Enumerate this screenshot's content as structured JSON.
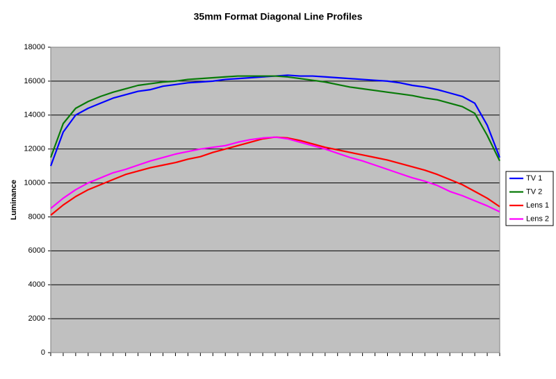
{
  "chart_data": {
    "type": "line",
    "title": "35mm Format Diagonal Line Profiles",
    "ylabel": "Luminance",
    "categories": [
      null,
      null,
      null,
      null,
      null,
      null,
      null,
      null,
      null,
      null,
      null,
      null,
      null,
      null,
      null,
      null,
      null,
      null,
      null,
      null,
      null,
      null,
      null,
      null,
      null,
      null,
      null,
      null,
      null,
      null,
      null,
      null,
      null,
      null,
      null,
      null,
      null
    ],
    "series": [
      {
        "name": "TV 1",
        "color": "#0000ff",
        "values": [
          11000,
          13000,
          14000,
          14400,
          14700,
          15000,
          15200,
          15400,
          15500,
          15700,
          15800,
          15900,
          15950,
          16000,
          16100,
          16150,
          16200,
          16250,
          16300,
          16350,
          16300,
          16300,
          16250,
          16200,
          16150,
          16100,
          16050,
          16000,
          15900,
          15750,
          15650,
          15500,
          15300,
          15100,
          14700,
          13400,
          11500
        ]
      },
      {
        "name": "TV 2",
        "color": "#087a08",
        "values": [
          11500,
          13500,
          14400,
          14800,
          15100,
          15350,
          15550,
          15750,
          15850,
          15950,
          16000,
          16100,
          16150,
          16200,
          16250,
          16300,
          16300,
          16300,
          16300,
          16250,
          16150,
          16050,
          15950,
          15800,
          15650,
          15550,
          15450,
          15350,
          15250,
          15150,
          15000,
          14900,
          14700,
          14500,
          14100,
          12800,
          11300
        ]
      },
      {
        "name": "Lens 1",
        "color": "#ff0000",
        "values": [
          8100,
          8700,
          9200,
          9600,
          9900,
          10200,
          10500,
          10700,
          10900,
          11050,
          11200,
          11400,
          11550,
          11800,
          12000,
          12200,
          12400,
          12600,
          12700,
          12650,
          12500,
          12300,
          12100,
          11950,
          11800,
          11650,
          11500,
          11350,
          11150,
          10950,
          10750,
          10500,
          10200,
          9900,
          9500,
          9100,
          8600
        ]
      },
      {
        "name": "Lens 2",
        "color": "#ff00ff",
        "values": [
          8500,
          9100,
          9600,
          10000,
          10300,
          10600,
          10800,
          11050,
          11300,
          11500,
          11700,
          11850,
          12000,
          12100,
          12200,
          12400,
          12550,
          12650,
          12700,
          12600,
          12400,
          12200,
          12000,
          11750,
          11500,
          11300,
          11050,
          10800,
          10550,
          10300,
          10100,
          9850,
          9500,
          9250,
          8950,
          8650,
          8300
        ]
      }
    ],
    "ylim": [
      0,
      18000
    ],
    "yticks": [
      0,
      2000,
      4000,
      6000,
      8000,
      10000,
      12000,
      14000,
      16000,
      18000
    ],
    "grid": true,
    "legend": "right"
  }
}
